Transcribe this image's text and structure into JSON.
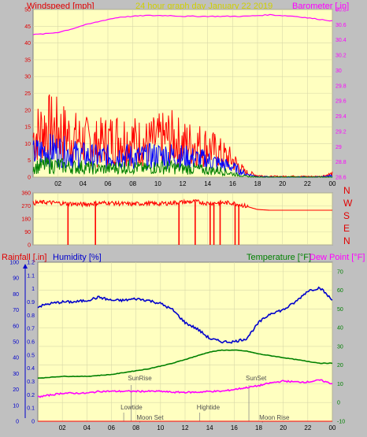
{
  "title": "24 hour graph day   January 22 2019",
  "colors": {
    "windspeed": "#ff0000",
    "avg_wind": "#0000ff",
    "wind_low": "#008000",
    "barometer": "#ff00ff",
    "direction": "#ff0000",
    "humidity": "#0000cc",
    "temperature": "#008000",
    "dewpoint": "#ff00ff",
    "plot_bg": "#ffffc0",
    "page_bg": "#c0c0c0"
  },
  "x_ticks": [
    "02",
    "04",
    "06",
    "08",
    "10",
    "12",
    "14",
    "16",
    "18",
    "20",
    "22",
    "00"
  ],
  "chart_data": [
    {
      "type": "line",
      "title": "24 hour graph day   January 22 2019",
      "left_axis_label": "Windspeed [mph]",
      "right_axis_label": "Barometer [.in]",
      "ylim": [
        0,
        50
      ],
      "y_ticks": [
        "0",
        "5",
        "10",
        "15",
        "20",
        "25",
        "30",
        "35",
        "40",
        "45",
        "50"
      ],
      "y2lim": [
        28.6,
        30.8
      ],
      "y2_ticks": [
        "28.6",
        "28.8",
        "29",
        "29.2",
        "29.4",
        "29.6",
        "29.8",
        "30",
        "30.2",
        "30.4",
        "30.6",
        "30.8"
      ],
      "x": [
        0,
        1,
        2,
        3,
        4,
        5,
        6,
        7,
        8,
        9,
        10,
        11,
        12,
        13,
        14,
        15,
        16,
        17,
        18,
        19,
        20,
        21,
        22,
        23,
        24
      ],
      "series": [
        {
          "role": "gust",
          "values": [
            12,
            15,
            14,
            12,
            11,
            10,
            11,
            12,
            11,
            10,
            11,
            12,
            10,
            10,
            9,
            7,
            5,
            1.5,
            0.5,
            0.2,
            0.2,
            0.3,
            0.2,
            0.2,
            1
          ]
        },
        {
          "role": "average",
          "values": [
            7,
            8,
            8,
            7,
            6.5,
            6,
            6,
            6.5,
            6,
            6,
            6.5,
            6.5,
            6,
            5.5,
            5,
            4,
            3,
            1,
            0.2,
            0,
            0,
            0,
            0,
            0,
            0.5
          ]
        },
        {
          "role": "low",
          "values": [
            3,
            3.5,
            3.5,
            3,
            3,
            2.5,
            2.5,
            3,
            3,
            2.5,
            3,
            3,
            2.5,
            2.5,
            2,
            2,
            1,
            0.3,
            0,
            0,
            0,
            0,
            0,
            0,
            0
          ]
        },
        {
          "role": "barometer",
          "axis": "right",
          "values": [
            30.47,
            30.48,
            30.5,
            30.54,
            30.59,
            30.63,
            30.67,
            30.7,
            30.71,
            30.72,
            30.72,
            30.72,
            30.71,
            30.71,
            30.71,
            30.71,
            30.71,
            30.71,
            30.72,
            30.73,
            30.72,
            30.71,
            30.69,
            30.67,
            30.65
          ]
        }
      ]
    },
    {
      "type": "line",
      "ylim": [
        0,
        360
      ],
      "y_ticks": [
        "0",
        "90",
        "180",
        "270",
        "360"
      ],
      "compass_labels": [
        "N",
        "W",
        "S",
        "E",
        "N"
      ],
      "x": [
        0,
        1,
        2,
        3,
        4,
        5,
        6,
        7,
        8,
        9,
        10,
        11,
        12,
        13,
        14,
        15,
        16,
        17,
        18,
        19,
        20,
        21,
        22,
        23,
        24
      ],
      "series": [
        {
          "role": "direction",
          "values": [
            290,
            295,
            290,
            285,
            280,
            288,
            292,
            286,
            282,
            288,
            284,
            290,
            296,
            300,
            288,
            292,
            290,
            270,
            245,
            240,
            240,
            240,
            240,
            240,
            240
          ]
        }
      ],
      "drops_to_zero_at_hours": [
        2.8,
        5.0,
        11.7,
        13.0,
        14.2,
        14.5,
        15.0,
        16.2,
        16.5
      ]
    },
    {
      "type": "line",
      "left_axis_label": "Rainfall [.in]",
      "humidity_axis_label": "Humidity [%]",
      "temperature_axis_label": "Temperature [°F]",
      "dewpoint_axis_label": "Dew Point [°F]",
      "rain_ylim": [
        0,
        1.2
      ],
      "rain_ticks": [
        "0",
        "0.1",
        "0.2",
        "0.3",
        "0.4",
        "0.5",
        "0.6",
        "0.7",
        "0.8",
        "0.9",
        "1",
        "1.1",
        "1.2"
      ],
      "humidity_ylim": [
        0,
        100
      ],
      "humidity_ticks": [
        "0",
        "10",
        "20",
        "30",
        "40",
        "50",
        "60",
        "70",
        "80",
        "90",
        "100"
      ],
      "temp_ylim": [
        -10,
        75
      ],
      "temp_ticks": [
        "-10",
        "0",
        "10",
        "20",
        "30",
        "40",
        "50",
        "60",
        "70"
      ],
      "x": [
        0,
        1,
        2,
        3,
        4,
        5,
        6,
        7,
        8,
        9,
        10,
        11,
        12,
        13,
        14,
        15,
        16,
        17,
        18,
        19,
        20,
        21,
        22,
        23,
        24
      ],
      "series": [
        {
          "role": "humidity",
          "axis": "humidity",
          "values": [
            72,
            74,
            75,
            75,
            76,
            78,
            76,
            76,
            77,
            76,
            74,
            70,
            62,
            58,
            52,
            50,
            50,
            52,
            62,
            68,
            70,
            75,
            82,
            84,
            76
          ]
        },
        {
          "role": "temperature",
          "axis": "temp",
          "values": [
            13,
            13.5,
            14,
            14,
            14,
            14.5,
            15,
            16,
            17,
            18,
            19.5,
            21,
            23,
            25,
            27,
            28,
            28,
            27.5,
            26,
            25,
            24,
            23,
            22,
            21,
            21
          ]
        },
        {
          "role": "dewpoint",
          "axis": "temp",
          "values": [
            3,
            4,
            5,
            5,
            5,
            6,
            6,
            6,
            6,
            6,
            6,
            5.5,
            5.5,
            5.5,
            6,
            6,
            7,
            8,
            9,
            10.5,
            11.5,
            11,
            11,
            12,
            10
          ]
        },
        {
          "role": "rainfall",
          "axis": "rain",
          "values": [
            0,
            0,
            0,
            0,
            0,
            0,
            0,
            0,
            0,
            0,
            0,
            0,
            0,
            0,
            0,
            0,
            0,
            0,
            0,
            0,
            0,
            0,
            0,
            0,
            0
          ]
        }
      ],
      "events": [
        {
          "label": "SunRise",
          "hour": 7.6,
          "row": 0
        },
        {
          "label": "Lowtide",
          "hour": 7.0,
          "row": 1
        },
        {
          "label": "Moon Set",
          "hour": 8.3,
          "row": 2
        },
        {
          "label": "Hightide",
          "hour": 13.2,
          "row": 1
        },
        {
          "label": "SunSet",
          "hour": 17.2,
          "row": 0
        },
        {
          "label": "Moon Rise",
          "hour": 18.3,
          "row": 2
        }
      ]
    }
  ]
}
